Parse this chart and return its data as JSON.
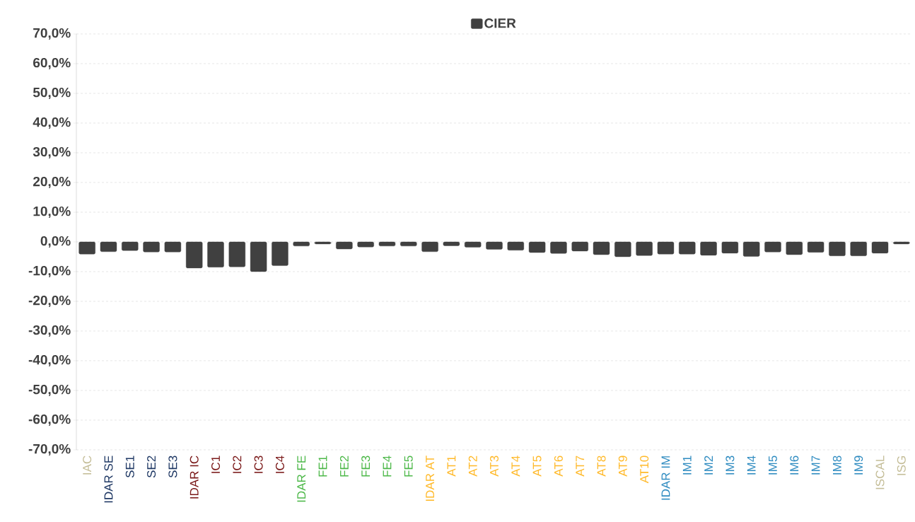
{
  "chart_data": {
    "type": "bar",
    "categories": [
      "IAC",
      "IDAR SE",
      "SE1",
      "SE2",
      "SE3",
      "IDAR IC",
      "IC1",
      "IC2",
      "IC3",
      "IC4",
      "IDAR FE",
      "FE1",
      "FE2",
      "FE3",
      "FE4",
      "FE5",
      "IDAR AT",
      "AT1",
      "AT2",
      "AT3",
      "AT4",
      "AT5",
      "AT6",
      "AT7",
      "AT8",
      "AT9",
      "AT10",
      "IDAR IM",
      "IM1",
      "IM2",
      "IM3",
      "IM4",
      "IM5",
      "IM6",
      "IM7",
      "IM8",
      "IM9",
      "ISCAL",
      "ISG"
    ],
    "series": [
      {
        "name": "CIER",
        "color": "#404040",
        "values": [
          -4.1,
          -3.3,
          -2.9,
          -3.4,
          -3.4,
          -8.8,
          -8.5,
          -8.4,
          -10.0,
          -8.0,
          -1.4,
          -0.7,
          -2.4,
          -1.7,
          -1.4,
          -1.4,
          -3.3,
          -1.3,
          -1.8,
          -2.5,
          -2.8,
          -3.6,
          -3.9,
          -3.1,
          -4.3,
          -5.0,
          -4.6,
          -4.1,
          -4.1,
          -4.5,
          -3.8,
          -4.9,
          -3.4,
          -4.3,
          -3.5,
          -4.7,
          -4.7,
          -3.8,
          -0.7
        ]
      }
    ],
    "ylim": [
      -70,
      70
    ],
    "yticks": [
      {
        "value": -70,
        "label": "-70,0%"
      },
      {
        "value": -60,
        "label": "-60,0%"
      },
      {
        "value": -50,
        "label": "-50,0%"
      },
      {
        "value": -40,
        "label": "-40,0%"
      },
      {
        "value": -30,
        "label": "-30,0%"
      },
      {
        "value": -20,
        "label": "-20,0%"
      },
      {
        "value": -10,
        "label": "-10,0%"
      },
      {
        "value": 0,
        "label": "0,0%"
      },
      {
        "value": 10,
        "label": "10,0%"
      },
      {
        "value": 20,
        "label": "20,0%"
      },
      {
        "value": 30,
        "label": "30,0%"
      },
      {
        "value": 40,
        "label": "40,0%"
      },
      {
        "value": 50,
        "label": "50,0%"
      },
      {
        "value": 60,
        "label": "60,0%"
      },
      {
        "value": 70,
        "label": "70,0%"
      }
    ],
    "grid": "y",
    "legend": "top"
  }
}
